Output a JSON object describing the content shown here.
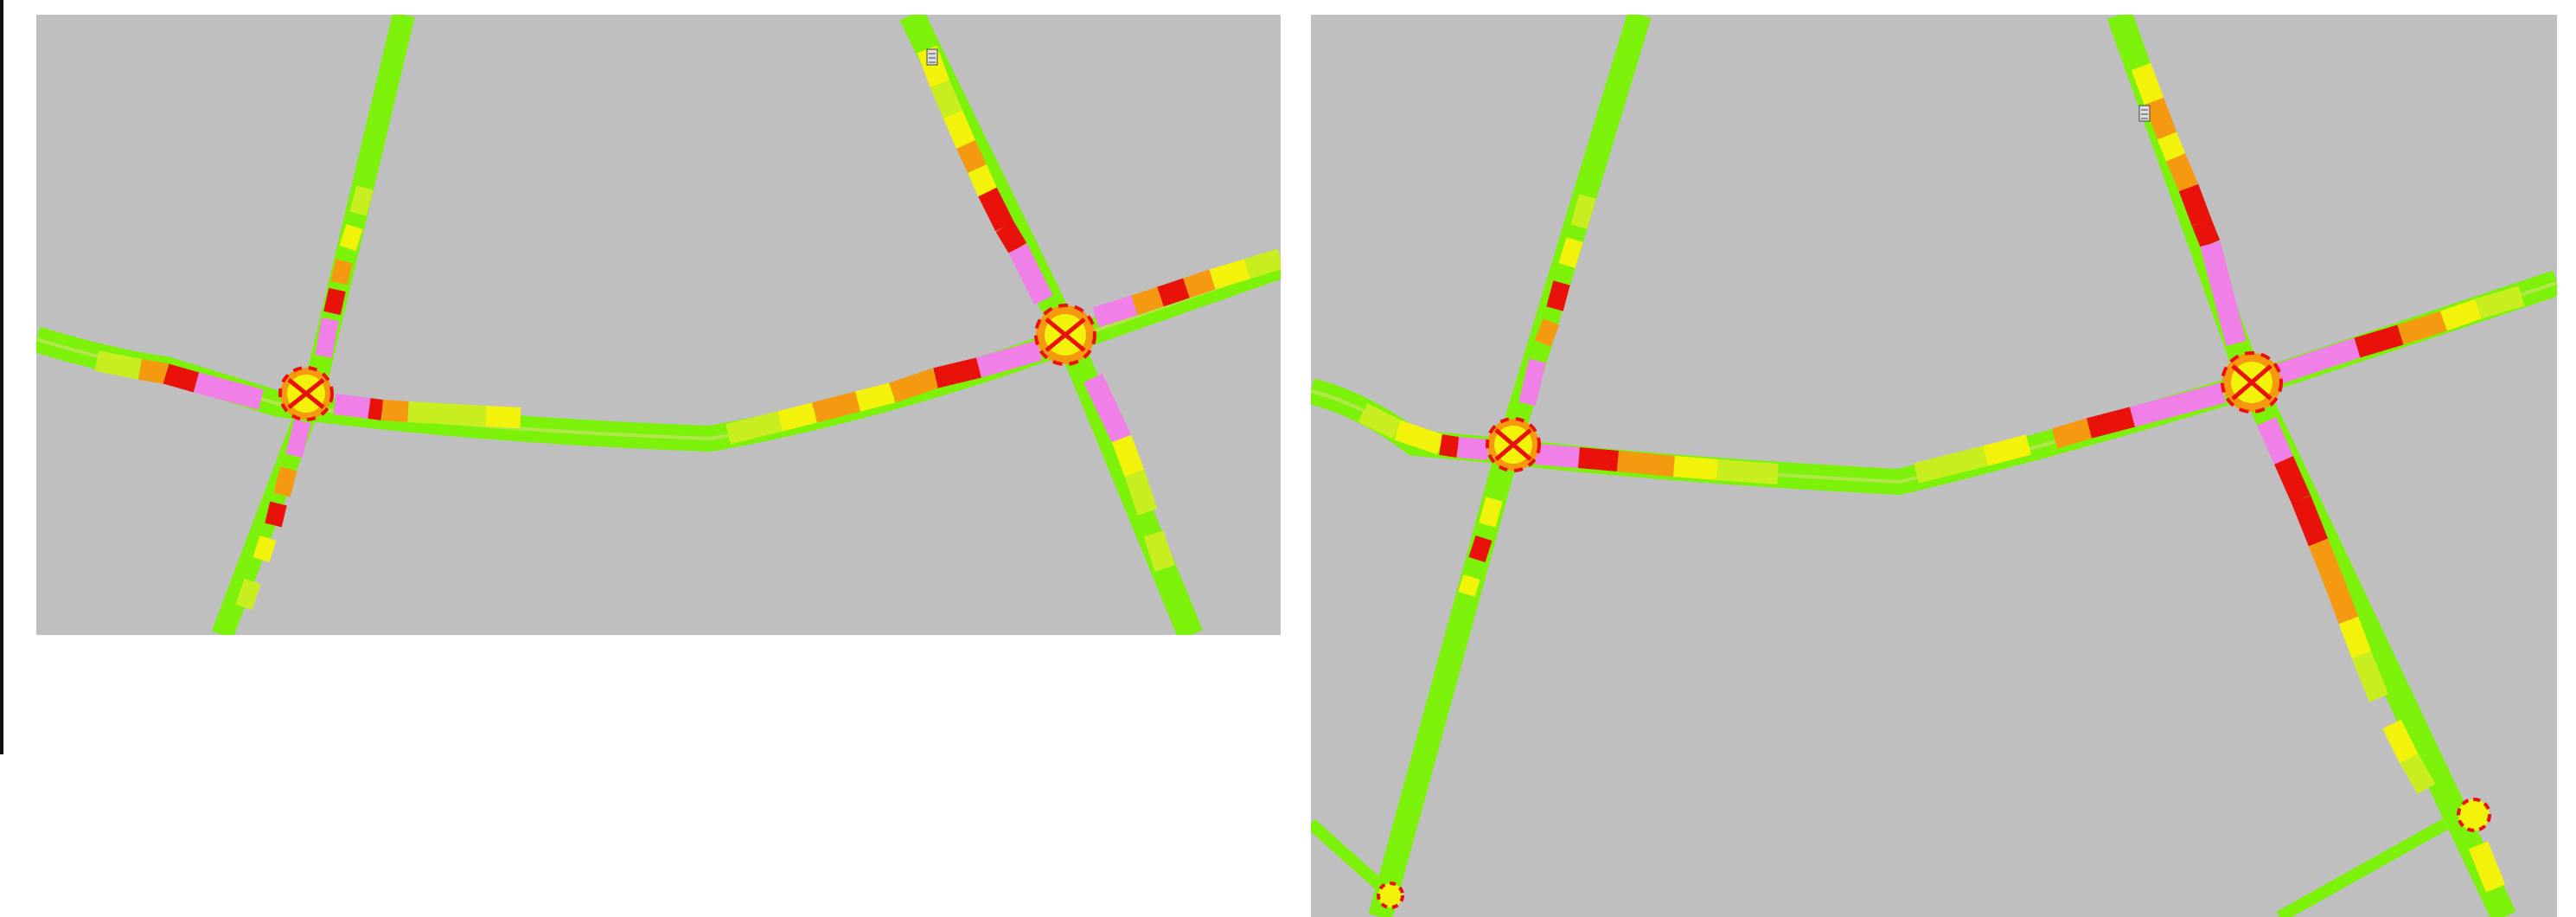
{
  "map": {
    "background_color": "#bfbfbf",
    "page_background_color": "#ffffff",
    "road_colors": {
      "free_flow": "#7cf20a",
      "light": "#c8ee20",
      "moderate": "#f2f20a",
      "heavy": "#f59a10",
      "jam": "#e8120a",
      "intersection": "#f080e8"
    },
    "panels": [
      {
        "id": "panel-left",
        "view": "traffic-simulation-view"
      },
      {
        "id": "panel-right",
        "view": "traffic-simulation-view"
      }
    ],
    "icons": [
      "traffic-detector-icon"
    ]
  }
}
